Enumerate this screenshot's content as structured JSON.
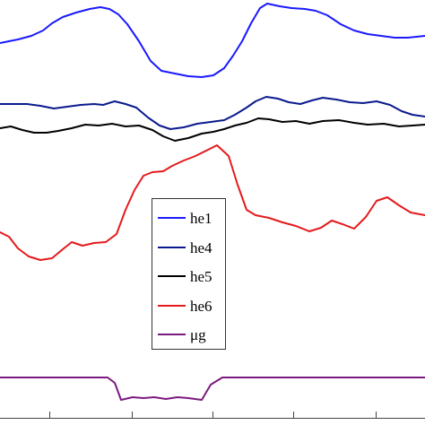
{
  "chart_data": {
    "type": "line",
    "title": "",
    "xlabel": "",
    "ylabel": "",
    "xlim": [
      0,
      474
    ],
    "ylim": [
      0,
      474
    ],
    "grid": false,
    "legend_placement": "center",
    "x_ticks": [
      55,
      147,
      237,
      327,
      419
    ],
    "series": [
      {
        "name": "he1",
        "color": "#1a1aff",
        "points": [
          [
            0,
            426
          ],
          [
            10,
            428
          ],
          [
            20,
            430
          ],
          [
            35,
            434
          ],
          [
            48,
            440
          ],
          [
            58,
            448
          ],
          [
            70,
            455
          ],
          [
            85,
            460
          ],
          [
            100,
            464
          ],
          [
            112,
            466
          ],
          [
            122,
            464
          ],
          [
            132,
            458
          ],
          [
            142,
            447
          ],
          [
            155,
            428
          ],
          [
            168,
            406
          ],
          [
            180,
            395
          ],
          [
            195,
            392
          ],
          [
            210,
            389
          ],
          [
            225,
            388
          ],
          [
            238,
            390
          ],
          [
            250,
            398
          ],
          [
            260,
            412
          ],
          [
            270,
            428
          ],
          [
            280,
            448
          ],
          [
            290,
            465
          ],
          [
            298,
            470
          ],
          [
            312,
            467
          ],
          [
            325,
            465
          ],
          [
            340,
            464
          ],
          [
            352,
            462
          ],
          [
            365,
            457
          ],
          [
            380,
            447
          ],
          [
            395,
            440
          ],
          [
            410,
            436
          ],
          [
            425,
            434
          ],
          [
            440,
            432
          ],
          [
            455,
            432
          ],
          [
            474,
            434
          ]
        ]
      },
      {
        "name": "he4",
        "color": "#0a1a8c",
        "points": [
          [
            0,
            358
          ],
          [
            15,
            358
          ],
          [
            30,
            358
          ],
          [
            45,
            356
          ],
          [
            60,
            353
          ],
          [
            75,
            355
          ],
          [
            90,
            357
          ],
          [
            105,
            358
          ],
          [
            115,
            357
          ],
          [
            128,
            361
          ],
          [
            140,
            358
          ],
          [
            152,
            354
          ],
          [
            165,
            343
          ],
          [
            178,
            334
          ],
          [
            190,
            330
          ],
          [
            205,
            332
          ],
          [
            220,
            336
          ],
          [
            235,
            338
          ],
          [
            250,
            340
          ],
          [
            262,
            346
          ],
          [
            275,
            354
          ],
          [
            285,
            361
          ],
          [
            297,
            366
          ],
          [
            310,
            364
          ],
          [
            322,
            360
          ],
          [
            335,
            358
          ],
          [
            348,
            362
          ],
          [
            360,
            365
          ],
          [
            375,
            363
          ],
          [
            390,
            360
          ],
          [
            405,
            359
          ],
          [
            420,
            361
          ],
          [
            435,
            357
          ],
          [
            448,
            350
          ],
          [
            460,
            346
          ],
          [
            474,
            344
          ]
        ]
      },
      {
        "name": "he5",
        "color": "#000000",
        "points": [
          [
            0,
            331
          ],
          [
            12,
            333
          ],
          [
            25,
            329
          ],
          [
            38,
            326
          ],
          [
            52,
            326
          ],
          [
            65,
            328
          ],
          [
            80,
            331
          ],
          [
            95,
            335
          ],
          [
            110,
            334
          ],
          [
            125,
            336
          ],
          [
            140,
            333
          ],
          [
            155,
            334
          ],
          [
            170,
            329
          ],
          [
            182,
            322
          ],
          [
            195,
            317
          ],
          [
            210,
            320
          ],
          [
            225,
            325
          ],
          [
            238,
            327
          ],
          [
            250,
            330
          ],
          [
            262,
            334
          ],
          [
            275,
            337
          ],
          [
            288,
            342
          ],
          [
            300,
            341
          ],
          [
            315,
            338
          ],
          [
            330,
            339
          ],
          [
            345,
            336
          ],
          [
            360,
            339
          ],
          [
            378,
            340
          ],
          [
            395,
            337
          ],
          [
            410,
            335
          ],
          [
            428,
            336
          ],
          [
            445,
            333
          ],
          [
            460,
            334
          ],
          [
            474,
            335
          ]
        ]
      },
      {
        "name": "he6",
        "color": "#e41a1c",
        "points": [
          [
            0,
            215
          ],
          [
            10,
            210
          ],
          [
            20,
            197
          ],
          [
            32,
            188
          ],
          [
            45,
            184
          ],
          [
            58,
            186
          ],
          [
            70,
            196
          ],
          [
            80,
            204
          ],
          [
            92,
            200
          ],
          [
            105,
            203
          ],
          [
            118,
            204
          ],
          [
            130,
            213
          ],
          [
            140,
            240
          ],
          [
            150,
            262
          ],
          [
            160,
            278
          ],
          [
            170,
            282
          ],
          [
            182,
            283
          ],
          [
            192,
            289
          ],
          [
            205,
            295
          ],
          [
            218,
            300
          ],
          [
            230,
            306
          ],
          [
            242,
            312
          ],
          [
            255,
            300
          ],
          [
            265,
            268
          ],
          [
            275,
            240
          ],
          [
            285,
            234
          ],
          [
            300,
            231
          ],
          [
            315,
            226
          ],
          [
            330,
            222
          ],
          [
            345,
            216
          ],
          [
            358,
            220
          ],
          [
            370,
            228
          ],
          [
            382,
            224
          ],
          [
            395,
            219
          ],
          [
            408,
            232
          ],
          [
            420,
            250
          ],
          [
            432,
            254
          ],
          [
            445,
            245
          ],
          [
            458,
            237
          ],
          [
            474,
            234
          ]
        ]
      },
      {
        "name": "μg",
        "color": "#7b1a7e",
        "points": [
          [
            0,
            53
          ],
          [
            25,
            53
          ],
          [
            50,
            53
          ],
          [
            75,
            53
          ],
          [
            100,
            53
          ],
          [
            120,
            53
          ],
          [
            128,
            47
          ],
          [
            135,
            28
          ],
          [
            148,
            31
          ],
          [
            160,
            30
          ],
          [
            172,
            31
          ],
          [
            185,
            29
          ],
          [
            198,
            31
          ],
          [
            210,
            30
          ],
          [
            225,
            28
          ],
          [
            235,
            45
          ],
          [
            248,
            53
          ],
          [
            270,
            53
          ],
          [
            300,
            53
          ],
          [
            330,
            53
          ],
          [
            360,
            53
          ],
          [
            390,
            53
          ],
          [
            420,
            53
          ],
          [
            450,
            53
          ],
          [
            474,
            53
          ]
        ]
      }
    ]
  }
}
